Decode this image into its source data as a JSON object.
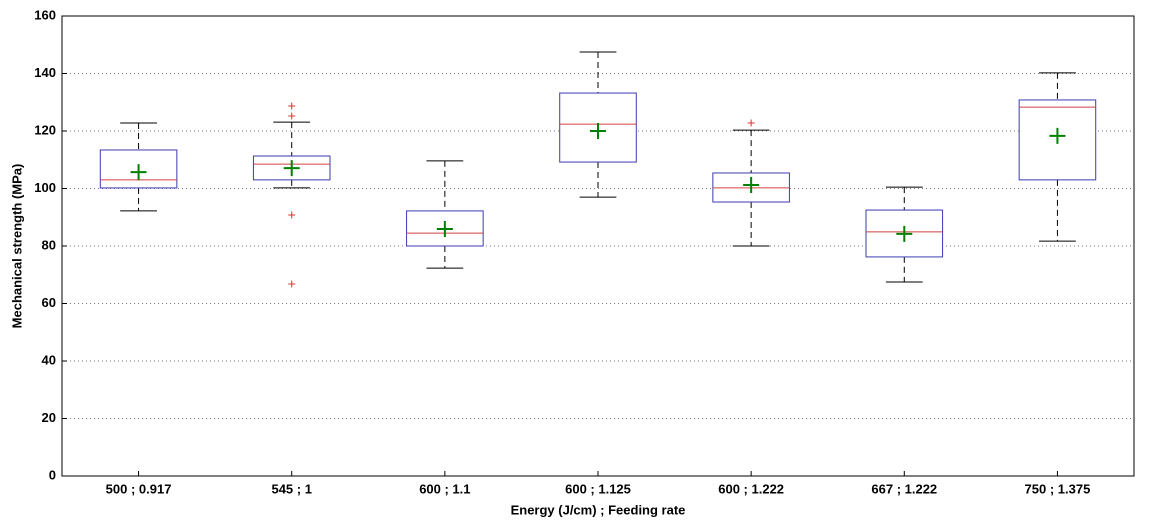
{
  "chart_data": {
    "type": "box",
    "xlabel": "Energy (J/cm) ; Feeding rate",
    "ylabel": "Mechanical strength (MPa)",
    "categories": [
      "500 ; 0.917",
      "545 ; 1",
      "600 ; 1.1",
      "600 ; 1.125",
      "600 ; 1.222",
      "667 ; 1.222",
      "750 ; 1.375"
    ],
    "boxes": [
      {
        "whisker_low": 92.2,
        "q1": 100.2,
        "median": 103,
        "q3": 113.4,
        "whisker_high": 122.8,
        "mean": 105.7,
        "outliers": []
      },
      {
        "whisker_low": 100.2,
        "q1": 103,
        "median": 108.5,
        "q3": 111.3,
        "whisker_high": 123.1,
        "mean": 107.1,
        "outliers": [
          128.7,
          125.2,
          90.8,
          66.8
        ]
      },
      {
        "whisker_low": 72.3,
        "q1": 80,
        "median": 84.5,
        "q3": 92.2,
        "whisker_high": 109.6,
        "mean": 85.9,
        "outliers": []
      },
      {
        "whisker_low": 97,
        "q1": 109.2,
        "median": 122.4,
        "q3": 133.2,
        "whisker_high": 147.5,
        "mean": 120,
        "outliers": []
      },
      {
        "whisker_low": 80,
        "q1": 95.3,
        "median": 100.2,
        "q3": 105.4,
        "whisker_high": 120.3,
        "mean": 101.2,
        "outliers": [
          122.8
        ]
      },
      {
        "whisker_low": 67.5,
        "q1": 76.2,
        "median": 84.9,
        "q3": 92.5,
        "whisker_high": 100.5,
        "mean": 84.2,
        "outliers": []
      },
      {
        "whisker_low": 81.7,
        "q1": 103,
        "median": 128.3,
        "q3": 130.8,
        "whisker_high": 140.2,
        "mean": 118.3,
        "outliers": []
      }
    ],
    "ylim": [
      0,
      160
    ],
    "yticks": [
      0,
      20,
      40,
      60,
      80,
      100,
      120,
      140,
      160
    ],
    "grid": true,
    "box_color": "#3b3bb3",
    "median_color": "#d04040",
    "mean_color": "#008000",
    "outlier_color": "#e03030",
    "whisker_color": "#000000"
  }
}
